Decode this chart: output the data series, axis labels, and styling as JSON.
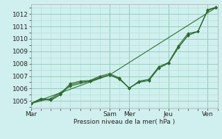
{
  "xlabel": "Pression niveau de la mer( hPa )",
  "ylim": [
    1004.4,
    1012.8
  ],
  "yticks": [
    1005,
    1006,
    1007,
    1008,
    1009,
    1010,
    1011,
    1012
  ],
  "bg_color": "#cff0ee",
  "grid_major_color": "#99ccbb",
  "grid_minor_color": "#b8e0d8",
  "line_color": "#2d6b2d",
  "vert_line_color": "#447744",
  "day_x": [
    0,
    4,
    5,
    7,
    9
  ],
  "day_labels": [
    "Mar",
    "Sam",
    "Mer",
    "Jeu",
    "Ven"
  ],
  "xlim": [
    0,
    9.5
  ],
  "line1_x": [
    0,
    0.5,
    1,
    1.5,
    2,
    2.5,
    3,
    3.5,
    4,
    4.5,
    5,
    5.5,
    6,
    6.5,
    7,
    7.5,
    8,
    8.5,
    9,
    9.4
  ],
  "line1_y": [
    1004.8,
    1005.15,
    1005.05,
    1005.5,
    1006.3,
    1006.5,
    1006.6,
    1006.9,
    1007.1,
    1006.75,
    1006.05,
    1006.55,
    1006.65,
    1007.65,
    1008.05,
    1009.3,
    1010.3,
    1010.6,
    1012.35,
    1012.55
  ],
  "line2_x": [
    0,
    0.5,
    1,
    1.5,
    2,
    2.5,
    3,
    3.5,
    4,
    4.5,
    5,
    5.5,
    6,
    6.5,
    7,
    7.5,
    8,
    8.5,
    9,
    9.4
  ],
  "line2_y": [
    1004.8,
    1005.2,
    1005.1,
    1005.6,
    1006.4,
    1006.6,
    1006.65,
    1007.0,
    1007.2,
    1006.85,
    1006.0,
    1006.6,
    1006.75,
    1007.75,
    1008.1,
    1009.45,
    1010.45,
    1010.6,
    1012.3,
    1012.5
  ],
  "line3_x": [
    0,
    1,
    2,
    3,
    4,
    4.5,
    5,
    5.5,
    6,
    6.5,
    7,
    7.5,
    8,
    8.5,
    9,
    9.4
  ],
  "line3_y": [
    1004.8,
    1005.2,
    1006.2,
    1006.6,
    1007.1,
    1006.8,
    1006.05,
    1006.5,
    1006.65,
    1007.65,
    1008.05,
    1009.3,
    1010.3,
    1010.6,
    1012.35,
    1012.5
  ],
  "line4_x": [
    0,
    4,
    9.4
  ],
  "line4_y": [
    1004.8,
    1007.1,
    1012.5
  ],
  "label_fontsize": 6.5,
  "tick_fontsize": 6.5
}
